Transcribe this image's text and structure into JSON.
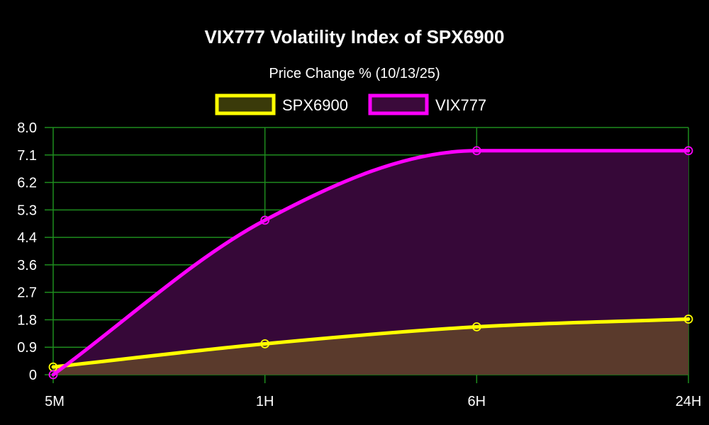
{
  "chart_data": {
    "type": "area",
    "title": "VIX777 Volatility Index of SPX6900",
    "subtitle": "Price Change % (10/13/25)",
    "categories": [
      "5M",
      "1H",
      "6H",
      "24H"
    ],
    "y_ticks": [
      "0",
      "0.9",
      "1.8",
      "2.7",
      "3.6",
      "4.4",
      "5.3",
      "6.2",
      "7.1",
      "8.0"
    ],
    "ylim": [
      0,
      8.0
    ],
    "grid": true,
    "legend_position": "top",
    "series": [
      {
        "name": "SPX6900",
        "values": [
          0.25,
          1.0,
          1.55,
          1.8
        ],
        "line_color": "#ffff00",
        "fill_color": "#5a3a2c",
        "legend_fill": "#3a3a0a"
      },
      {
        "name": "VIX777",
        "values": [
          0.0,
          5.0,
          7.25,
          7.25
        ],
        "line_color": "#ff00ff",
        "fill_color": "#360838",
        "legend_fill": "#3a0a3a"
      }
    ],
    "colors": {
      "background": "#000000",
      "grid": "#1e8c1e",
      "text": "#ffffff"
    }
  }
}
